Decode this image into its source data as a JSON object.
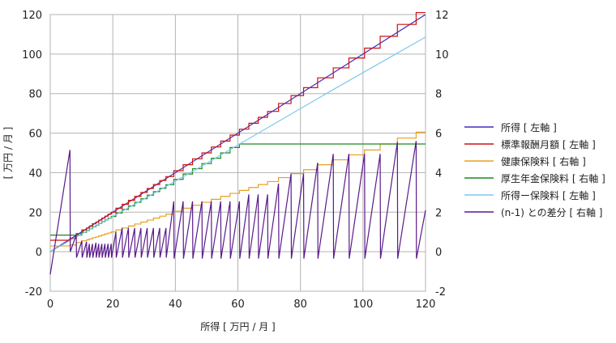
{
  "chart_data": {
    "type": "line",
    "xlabel": "所得 [ 万円 / 月 ]",
    "ylabel_left": "[ 万円 / 月 ]",
    "ylabel_right": "",
    "xlim": [
      0,
      120
    ],
    "ylim_left": [
      -20,
      120
    ],
    "ylim_right": [
      -2,
      12
    ],
    "x_ticks": [
      0,
      20,
      40,
      60,
      80,
      100,
      120
    ],
    "y_ticks_left": [
      -20,
      0,
      20,
      40,
      60,
      80,
      100,
      120
    ],
    "y_ticks_right": [
      -2,
      0,
      2,
      4,
      6,
      8,
      10,
      12
    ],
    "grid": true,
    "legend_position": "right",
    "series": [
      {
        "name": "所得 [ 左軸 ]",
        "axis": "left",
        "color": "#3f2fbf",
        "step": false,
        "x": [
          0,
          120
        ],
        "y": [
          0,
          120
        ]
      },
      {
        "name": "標準報酬月額 [ 左軸 ]",
        "axis": "left",
        "color": "#d01010",
        "step": true,
        "x": [
          0,
          6.3,
          8.3,
          10.1,
          11.6,
          12.5,
          13.5,
          14.6,
          15.5,
          16.5,
          17.5,
          18.5,
          19.5,
          21.0,
          23.0,
          25.0,
          27.0,
          29.0,
          31.0,
          33.0,
          35.0,
          37.0,
          39.5,
          42.5,
          45.5,
          48.5,
          51.5,
          54.5,
          57.5,
          60.5,
          63.5,
          66.5,
          69.5,
          73.0,
          77.0,
          81.0,
          85.5,
          90.5,
          95.5,
          100.5,
          105.5,
          111.0,
          117.0
        ],
        "y": [
          5.8,
          6.8,
          9.2,
          11.0,
          12.0,
          13.0,
          14.2,
          15.0,
          16.0,
          17.0,
          18.0,
          19.0,
          20.0,
          22.0,
          24.0,
          26.0,
          28.0,
          30.0,
          32.0,
          34.0,
          36.0,
          38.0,
          41.0,
          44.0,
          47.0,
          50.0,
          53.0,
          56.0,
          59.0,
          62.0,
          65.0,
          68.0,
          71.0,
          75.0,
          79.0,
          83.0,
          88.0,
          93.0,
          98.0,
          103.0,
          109.0,
          115.0,
          121.0
        ]
      },
      {
        "name": "健康保険料 [ 右軸 ]",
        "axis": "right",
        "color": "#e8a020",
        "step": true,
        "x": [
          0,
          6.3,
          8.3,
          10.1,
          11.6,
          12.5,
          13.5,
          14.6,
          15.5,
          16.5,
          17.5,
          18.5,
          19.5,
          21.0,
          23.0,
          25.0,
          27.0,
          29.0,
          31.0,
          33.0,
          35.0,
          37.0,
          39.5,
          42.5,
          45.5,
          48.5,
          51.5,
          54.5,
          57.5,
          60.5,
          63.5,
          66.5,
          69.5,
          73.0,
          77.0,
          81.0,
          85.5,
          90.5,
          95.5,
          100.5,
          105.5,
          111.0,
          117.0
        ],
        "y": [
          0.29,
          0.34,
          0.46,
          0.55,
          0.6,
          0.65,
          0.71,
          0.75,
          0.8,
          0.85,
          0.9,
          0.95,
          1.0,
          1.1,
          1.2,
          1.3,
          1.4,
          1.5,
          1.6,
          1.7,
          1.8,
          1.9,
          2.05,
          2.2,
          2.35,
          2.5,
          2.65,
          2.8,
          2.95,
          3.1,
          3.25,
          3.4,
          3.55,
          3.75,
          3.95,
          4.15,
          4.4,
          4.65,
          4.9,
          5.15,
          5.45,
          5.75,
          6.05
        ]
      },
      {
        "name": "厚生年金保険料 [ 右軸 ]",
        "axis": "right",
        "color": "#1a8a1a",
        "step": true,
        "x": [
          0,
          8.3,
          10.1,
          11.6,
          12.5,
          13.5,
          14.6,
          15.5,
          16.5,
          17.5,
          18.5,
          19.5,
          21.0,
          23.0,
          25.0,
          27.0,
          29.0,
          31.0,
          33.0,
          35.0,
          37.0,
          39.5,
          42.5,
          45.5,
          48.5,
          51.5,
          54.5,
          57.5,
          60.5,
          120
        ],
        "y": [
          0.84,
          0.84,
          0.98,
          1.07,
          1.16,
          1.26,
          1.34,
          1.43,
          1.52,
          1.61,
          1.7,
          1.78,
          1.96,
          2.14,
          2.32,
          2.5,
          2.68,
          2.86,
          3.04,
          3.21,
          3.39,
          3.66,
          3.93,
          4.2,
          4.46,
          4.73,
          5.0,
          5.27,
          5.45,
          5.45
        ]
      },
      {
        "name": "所得ー保険料 [ 左軸 ]",
        "axis": "left",
        "color": "#7ec8ee",
        "step": false,
        "x": [
          0,
          10,
          20,
          30,
          40,
          50,
          60,
          70,
          80,
          90,
          100,
          110,
          120
        ],
        "y": [
          0,
          8.9,
          17.8,
          26.7,
          35.7,
          44.7,
          54.0,
          63.2,
          72.4,
          81.6,
          90.6,
          99.6,
          108.6
        ]
      },
      {
        "name": "(n-1) との差分 [ 右軸 ]",
        "axis": "right",
        "color": "#5a1a8a",
        "step": false,
        "x": [
          0,
          6.3,
          6.4,
          8.3,
          8.4,
          10.1,
          10.2,
          11.6,
          11.7,
          12.5,
          12.6,
          13.5,
          13.6,
          14.6,
          14.7,
          15.5,
          15.6,
          16.5,
          16.6,
          17.5,
          17.6,
          18.5,
          18.6,
          19.5,
          19.6,
          21.0,
          21.1,
          23.0,
          23.1,
          25.0,
          25.1,
          27.0,
          27.1,
          29.0,
          29.1,
          31.0,
          31.1,
          33.0,
          33.1,
          35.0,
          35.1,
          37.0,
          37.1,
          39.5,
          39.6,
          42.5,
          42.6,
          45.5,
          45.6,
          48.5,
          48.6,
          51.5,
          51.6,
          54.5,
          54.6,
          57.5,
          57.6,
          60.5,
          60.6,
          63.5,
          63.6,
          66.5,
          66.6,
          69.5,
          69.6,
          73.0,
          73.1,
          77.0,
          77.1,
          81.0,
          81.1,
          85.5,
          85.6,
          90.5,
          90.6,
          95.5,
          95.6,
          100.5,
          100.6,
          105.5,
          105.6,
          111.0,
          111.1,
          117.0,
          117.1,
          120
        ],
        "y": [
          -1.15,
          5.15,
          0.0,
          0.85,
          -0.3,
          0.55,
          -0.3,
          0.5,
          -0.3,
          0.4,
          -0.3,
          0.4,
          -0.3,
          0.45,
          -0.3,
          0.4,
          -0.3,
          0.4,
          -0.3,
          0.4,
          -0.3,
          0.4,
          -0.3,
          0.4,
          -0.3,
          1.0,
          -0.3,
          1.2,
          -0.3,
          1.2,
          -0.3,
          1.2,
          -0.3,
          1.2,
          -0.3,
          1.2,
          -0.3,
          1.2,
          -0.3,
          1.2,
          -0.3,
          1.2,
          -0.3,
          2.55,
          -0.35,
          2.55,
          -0.35,
          2.55,
          -0.35,
          2.55,
          -0.35,
          2.55,
          -0.35,
          2.55,
          -0.35,
          2.55,
          -0.35,
          2.55,
          -0.35,
          2.9,
          -0.35,
          2.9,
          -0.35,
          2.9,
          -0.35,
          3.45,
          -0.35,
          3.95,
          -0.35,
          3.95,
          -0.35,
          4.5,
          -0.35,
          4.95,
          -0.35,
          4.95,
          -0.35,
          4.95,
          -0.35,
          4.95,
          -0.35,
          5.55,
          -0.35,
          5.6,
          -0.35,
          2.1
        ]
      }
    ]
  }
}
